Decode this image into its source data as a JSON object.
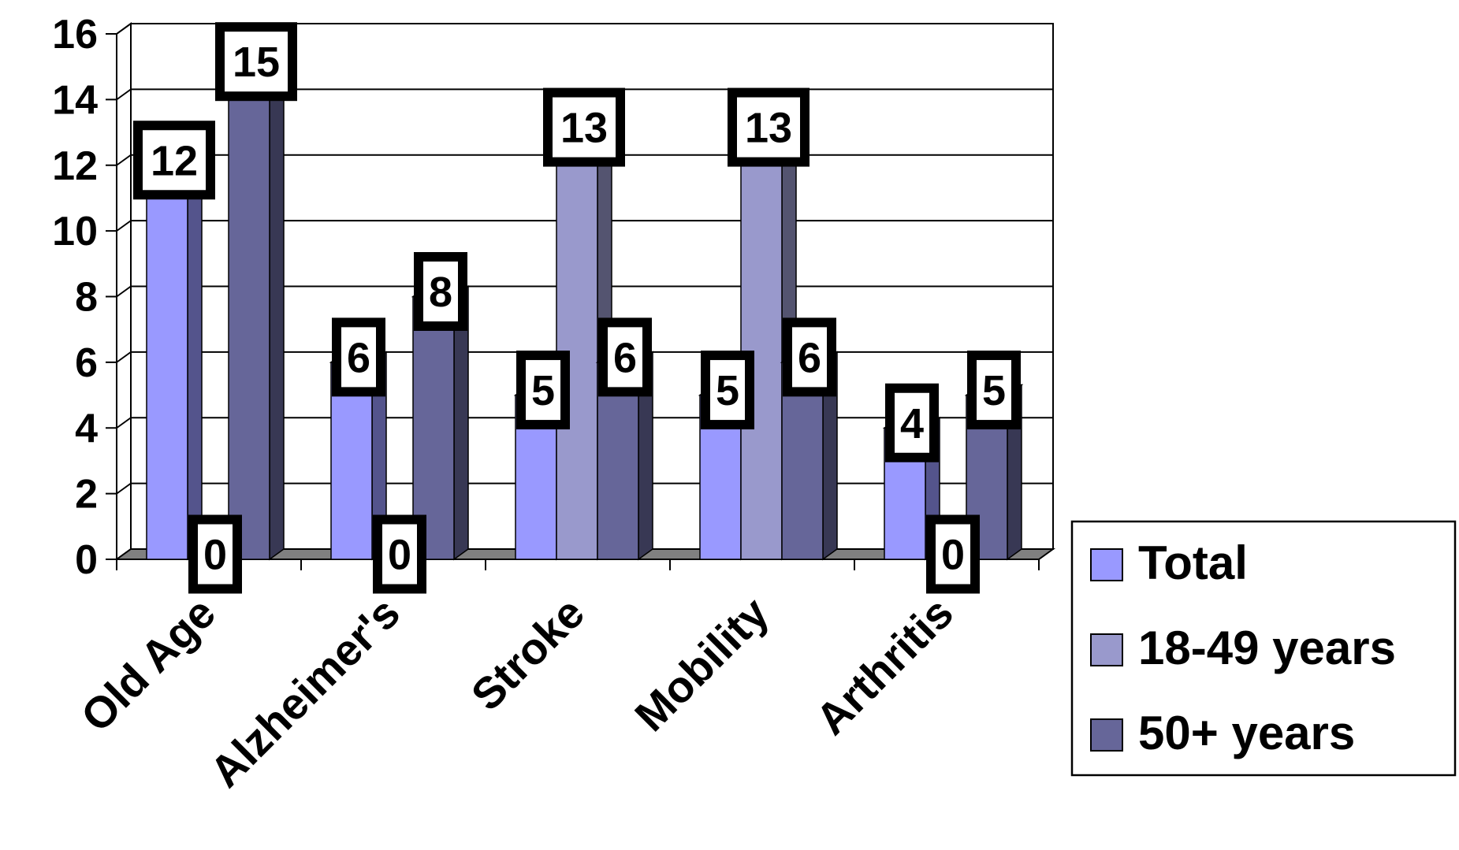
{
  "chart_data": {
    "type": "bar",
    "title": "",
    "xlabel": "",
    "ylabel": "",
    "categories": [
      "Old Age",
      "Alzheimer's",
      "Stroke",
      "Mobility",
      "Arthritis"
    ],
    "series": [
      {
        "name": "Total",
        "values": [
          12,
          6,
          5,
          5,
          4
        ],
        "color": "#9999ff"
      },
      {
        "name": "18-49 years",
        "values": [
          0,
          0,
          13,
          13,
          0
        ],
        "color": "#9999cc"
      },
      {
        "name": "50+ years",
        "values": [
          15,
          8,
          6,
          6,
          5
        ],
        "color": "#666699"
      }
    ],
    "ylim": [
      0,
      16
    ],
    "yticks": [
      "0",
      "2",
      "4",
      "6",
      "8",
      "10",
      "12",
      "14",
      "16"
    ],
    "grid": true,
    "style": "3d-clustered-column",
    "data_labels": true,
    "legend_position": "right"
  }
}
